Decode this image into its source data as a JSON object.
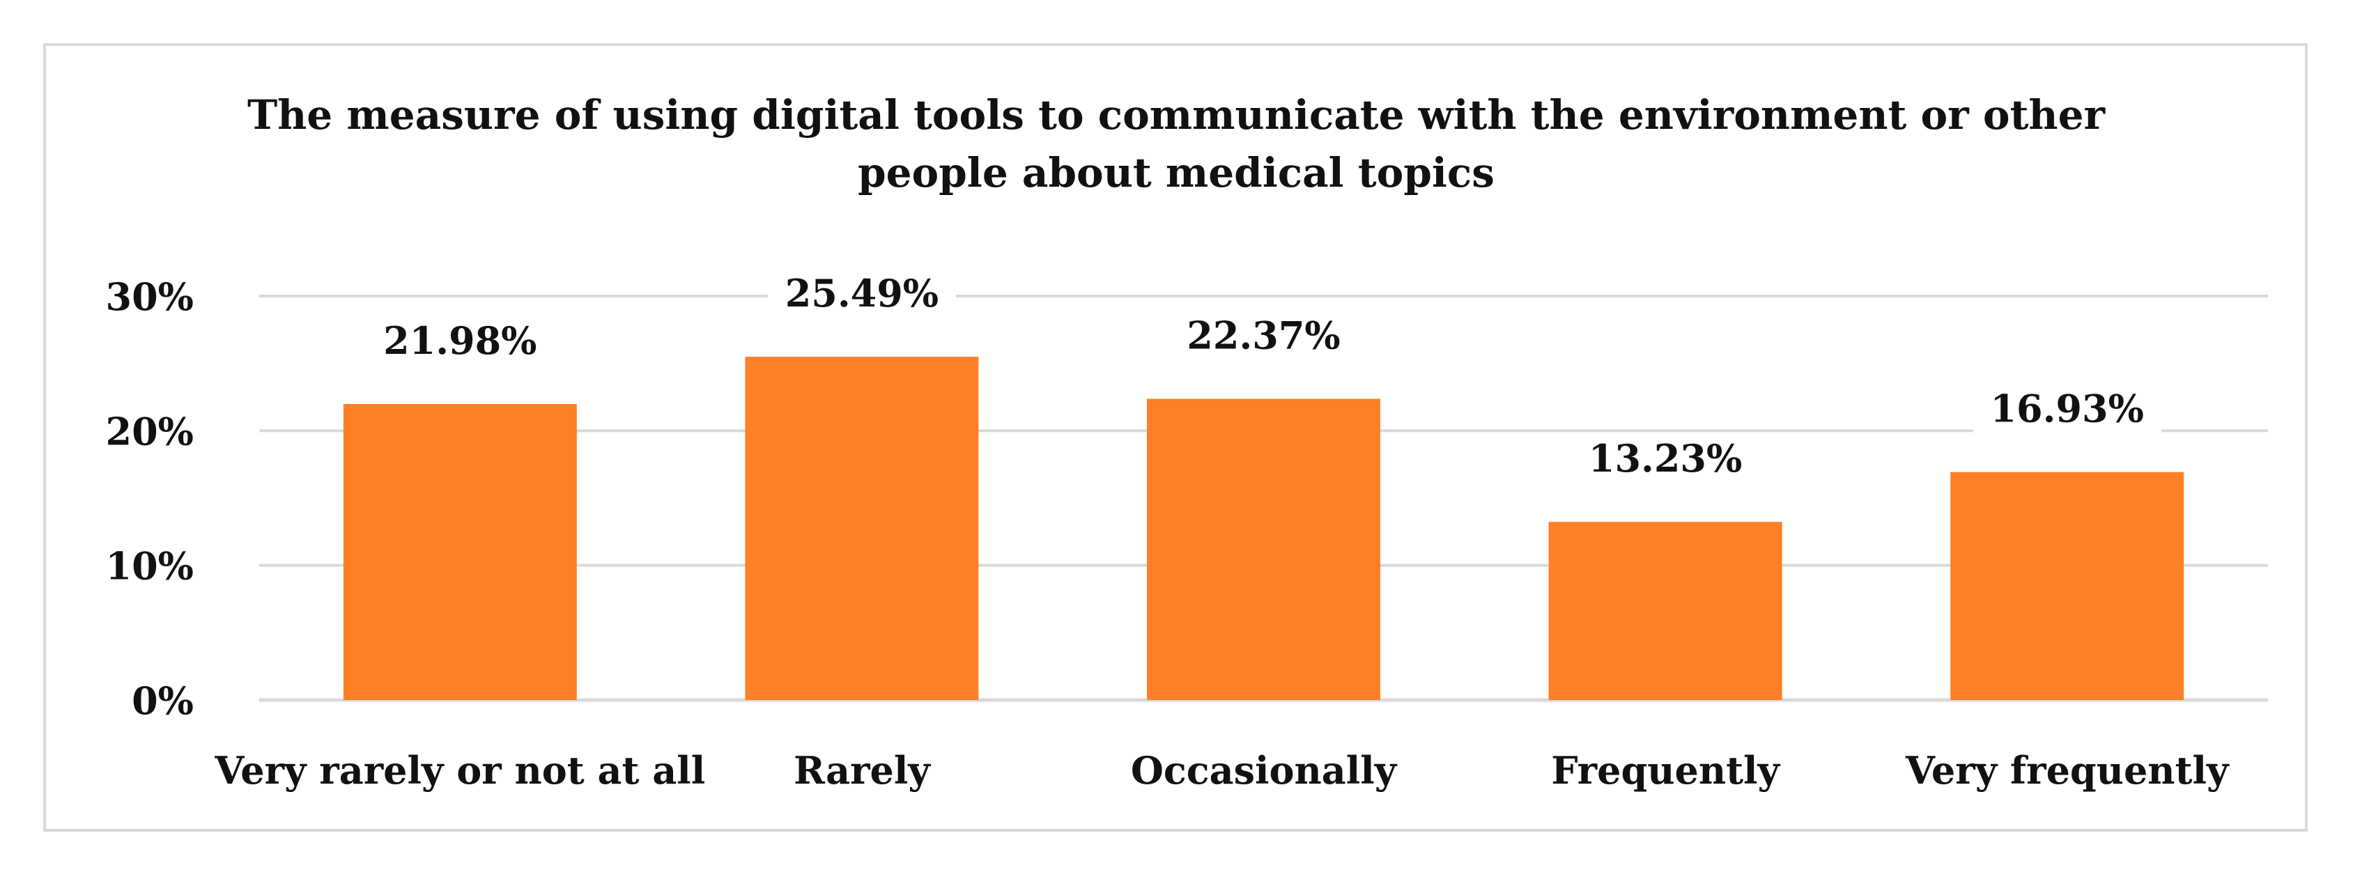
{
  "chart_data": {
    "type": "bar",
    "title": "The measure of using digital tools to communicate with the environment or other people about medical topics",
    "title_lines": [
      "The measure of using digital tools to communicate with the environment or other",
      "people about medical topics"
    ],
    "categories": [
      "Very rarely or not at all",
      "Rarely",
      "Occasionally",
      "Frequently",
      "Very frequently"
    ],
    "values": [
      21.98,
      25.49,
      22.37,
      13.23,
      16.93
    ],
    "data_labels": [
      "21.98%",
      "25.49%",
      "22.37%",
      "13.23%",
      "16.93%"
    ],
    "yticks": [
      0,
      10,
      20,
      30
    ],
    "ytick_labels": [
      "0%",
      "10%",
      "20%",
      "30%"
    ],
    "ylim": [
      0,
      30
    ],
    "xlabel": "",
    "ylabel": "",
    "grid": true,
    "legend": "none",
    "colors": {
      "bar": "#FF7F27",
      "grid": "#d9d9d9",
      "text": "#111111",
      "border": "#d9d9d9"
    }
  }
}
